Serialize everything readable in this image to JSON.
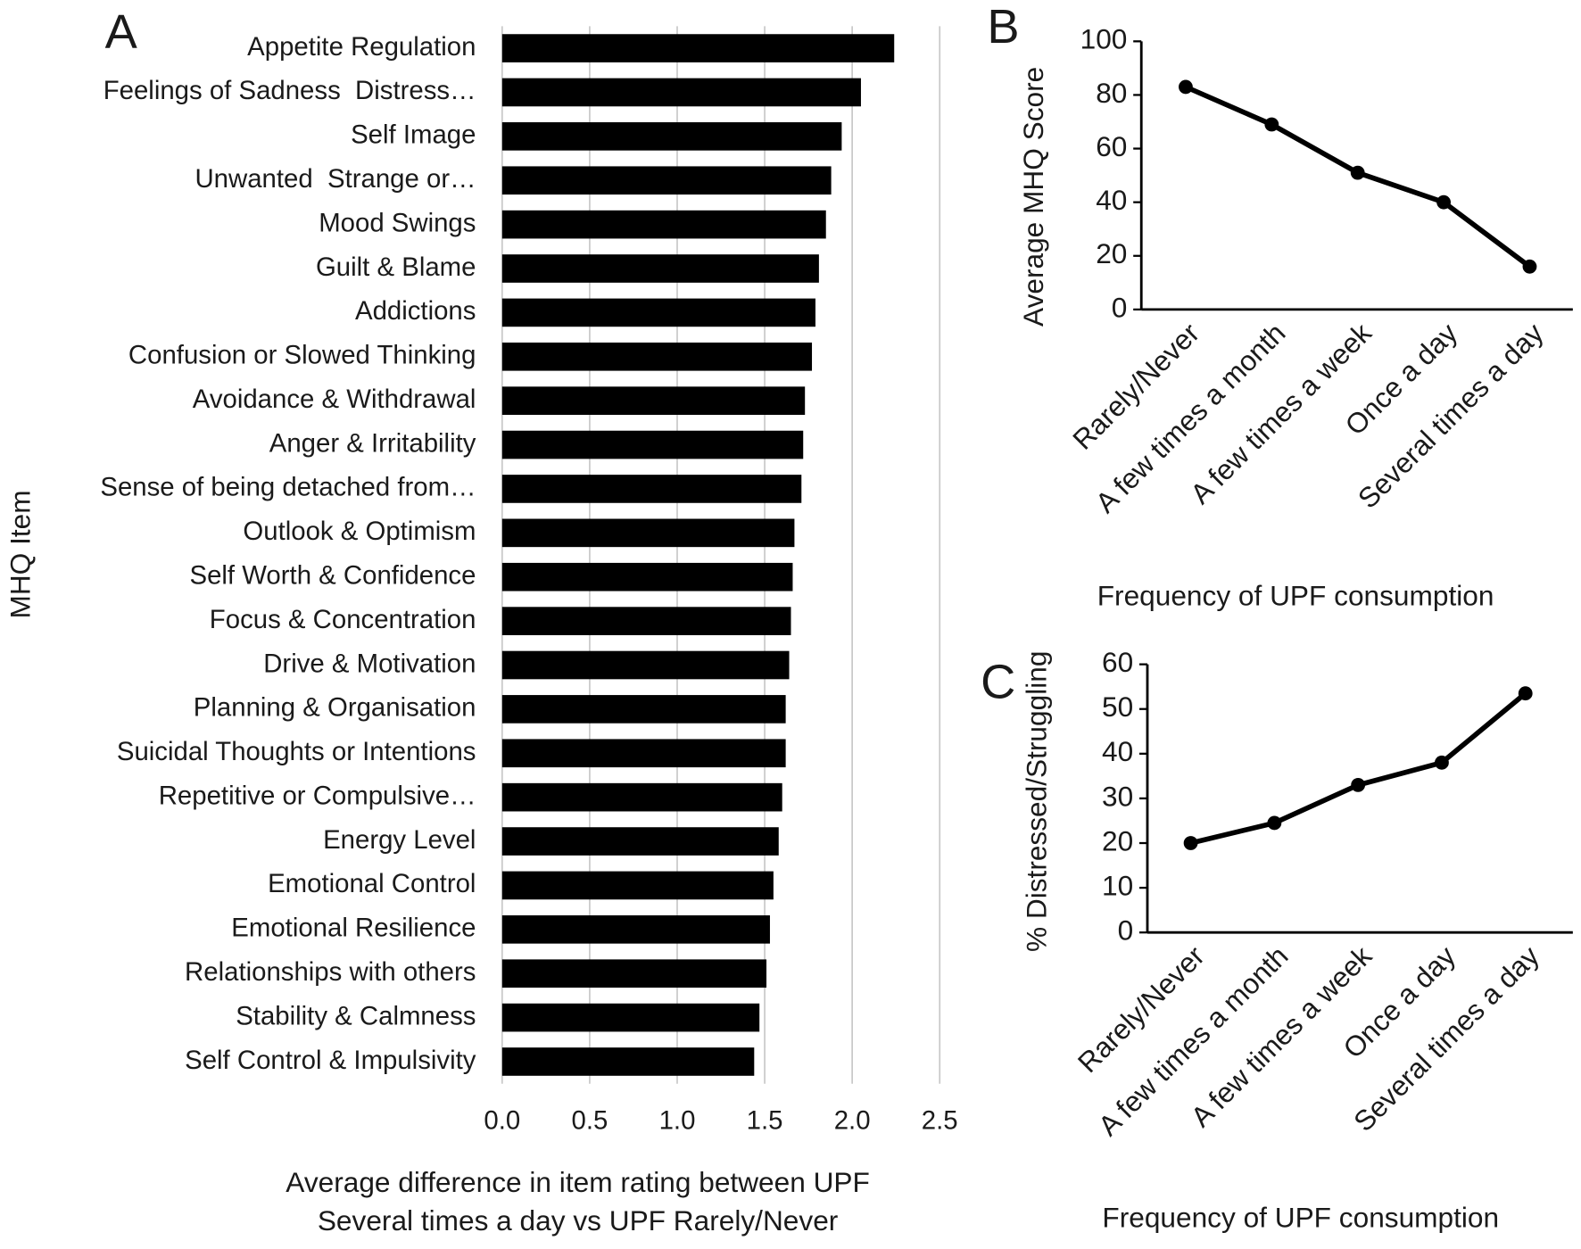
{
  "chart_data": [
    {
      "type": "barh",
      "panel": "A",
      "color": "#000000",
      "grid": true,
      "categories": [
        "Appetite Regulation",
        "Feelings of Sadness  Distress…",
        "Self Image",
        "Unwanted  Strange or…",
        "Mood Swings",
        "Guilt & Blame",
        "Addictions",
        "Confusion or Slowed Thinking",
        "Avoidance & Withdrawal",
        "Anger & Irritability",
        "Sense of being detached from…",
        "Outlook & Optimism",
        "Self Worth & Confidence",
        "Focus & Concentration",
        "Drive & Motivation",
        "Planning & Organisation",
        "Suicidal Thoughts or Intentions",
        "Repetitive or Compulsive…",
        "Energy Level",
        "Emotional Control",
        "Emotional Resilience",
        "Relationships with others",
        "Stability & Calmness",
        "Self Control & Impulsivity"
      ],
      "values": [
        2.24,
        2.05,
        1.94,
        1.88,
        1.85,
        1.81,
        1.79,
        1.77,
        1.73,
        1.72,
        1.71,
        1.67,
        1.66,
        1.65,
        1.64,
        1.62,
        1.62,
        1.6,
        1.58,
        1.55,
        1.53,
        1.51,
        1.47,
        1.44
      ],
      "xlim": [
        0,
        2.5
      ],
      "xticks": [
        {
          "value": 0,
          "label": "0.0"
        },
        0.5,
        {
          "value": 1,
          "label": "1.0"
        },
        1.5,
        {
          "value": 2,
          "label": "2.0"
        },
        2.5
      ],
      "xlabel": [
        "Average difference in item rating between UPF",
        "Several times a day vs UPF Rarely/Never"
      ],
      "ylabel": "MHQ Item"
    },
    {
      "type": "line",
      "panel": "B",
      "color": "#000000",
      "categories": [
        "Rarely/Never",
        "A few times a month",
        "A few times a week",
        "Once a day",
        "Several times a day"
      ],
      "values": [
        83,
        69,
        51,
        40,
        16
      ],
      "ylim": [
        0,
        100
      ],
      "yticks": [
        0,
        20,
        40,
        60,
        80,
        100
      ],
      "xlabel": "Frequency of UPF consumption",
      "ylabel": "Average MHQ Score"
    },
    {
      "type": "line",
      "panel": "C",
      "color": "#000000",
      "categories": [
        "Rarely/Never",
        "A few times a month",
        "A few times a week",
        "Once a day",
        "Several times a day"
      ],
      "values": [
        20,
        24.5,
        33,
        38,
        53.5
      ],
      "ylim": [
        0,
        60
      ],
      "yticks": [
        0,
        10,
        20,
        30,
        40,
        50,
        60
      ],
      "xlabel": "Frequency of UPF consumption",
      "ylabel": "% Distressed/Struggling"
    }
  ]
}
